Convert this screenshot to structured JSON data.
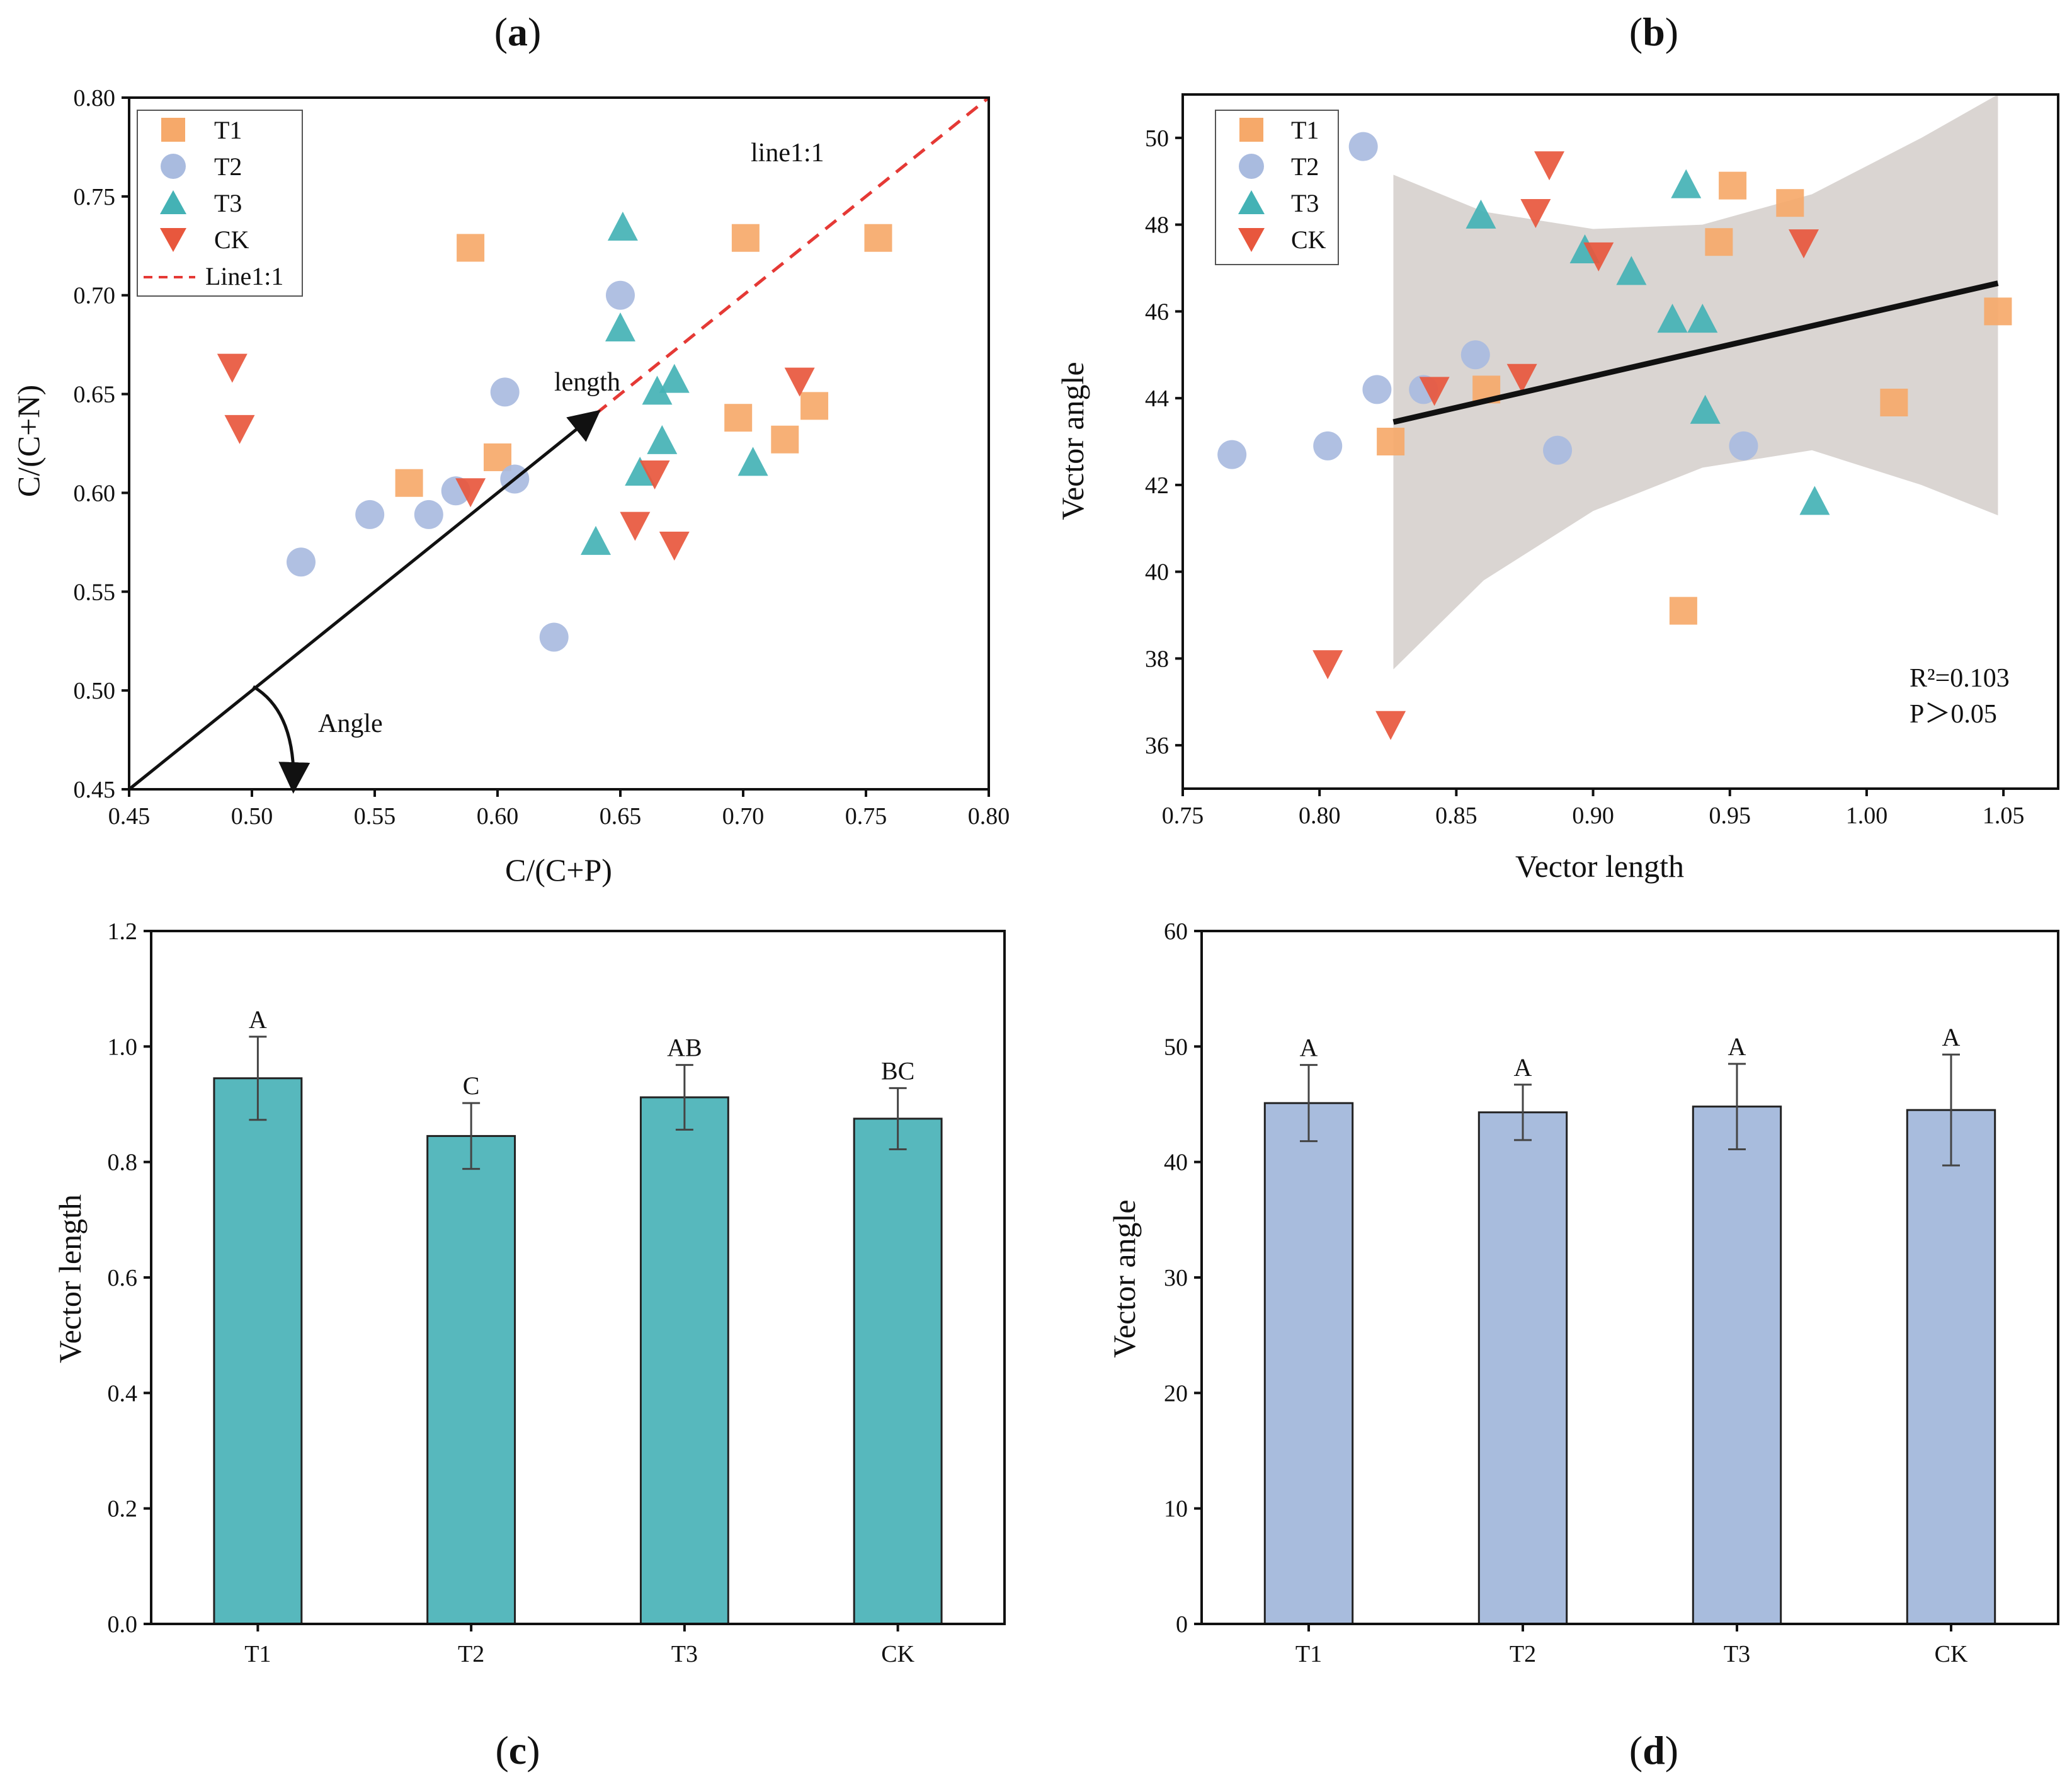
{
  "figure": {
    "panel_labels": {
      "a": [
        "(",
        "a",
        ")"
      ],
      "b": [
        "(",
        "b",
        ")"
      ],
      "c": [
        "(",
        "c",
        ")"
      ],
      "d": [
        "(",
        "d",
        ")"
      ]
    }
  },
  "chart_data": [
    {
      "panel": "a",
      "type": "scatter",
      "xlabel": "C/(C+P)",
      "ylabel": "C/(C+N)",
      "xlim": [
        0.45,
        0.8
      ],
      "ylim": [
        0.45,
        0.8
      ],
      "xticks": [
        "0.45",
        "0.50",
        "0.55",
        "0.60",
        "0.65",
        "0.70",
        "0.75",
        "0.80"
      ],
      "yticks": [
        "0.45",
        "0.50",
        "0.55",
        "0.60",
        "0.65",
        "0.70",
        "0.75",
        "0.80"
      ],
      "reference_line": {
        "name": "Line1:1",
        "label": "line1:1",
        "from": [
          0.45,
          0.45
        ],
        "to": [
          0.8,
          0.8
        ]
      },
      "annotations": {
        "length": "length",
        "angle": "Angle"
      },
      "vector_arrow": {
        "from": [
          0.45,
          0.45
        ],
        "to": [
          0.64,
          0.64
        ]
      },
      "legend": [
        "T1",
        "T2",
        "T3",
        "CK",
        "Line1:1"
      ],
      "series": [
        {
          "name": "T1",
          "marker": "square",
          "color": "#f6a96a",
          "points": [
            [
              0.589,
              0.724
            ],
            [
              0.701,
              0.729
            ],
            [
              0.755,
              0.729
            ],
            [
              0.564,
              0.605
            ],
            [
              0.6,
              0.618
            ],
            [
              0.698,
              0.638
            ],
            [
              0.717,
              0.627
            ],
            [
              0.729,
              0.644
            ]
          ]
        },
        {
          "name": "T2",
          "marker": "circle",
          "color": "#a9bbdf",
          "points": [
            [
              0.65,
              0.7
            ],
            [
              0.603,
              0.651
            ],
            [
              0.52,
              0.565
            ],
            [
              0.548,
              0.589
            ],
            [
              0.572,
              0.589
            ],
            [
              0.583,
              0.601
            ],
            [
              0.607,
              0.607
            ],
            [
              0.623,
              0.527
            ]
          ]
        },
        {
          "name": "T3",
          "marker": "triangle-up",
          "color": "#44b2b5",
          "points": [
            [
              0.651,
              0.734
            ],
            [
              0.65,
              0.683
            ],
            [
              0.672,
              0.657
            ],
            [
              0.665,
              0.651
            ],
            [
              0.667,
              0.626
            ],
            [
              0.658,
              0.61
            ],
            [
              0.704,
              0.615
            ],
            [
              0.64,
              0.575
            ]
          ]
        },
        {
          "name": "CK",
          "marker": "triangle-down",
          "color": "#e8573d",
          "points": [
            [
              0.492,
              0.664
            ],
            [
              0.495,
              0.633
            ],
            [
              0.723,
              0.657
            ],
            [
              0.664,
              0.61
            ],
            [
              0.589,
              0.601
            ],
            [
              0.656,
              0.584
            ],
            [
              0.672,
              0.574
            ]
          ]
        }
      ]
    },
    {
      "panel": "b",
      "type": "scatter",
      "xlabel": "Vector length",
      "ylabel": "Vector angle",
      "xlim": [
        0.75,
        1.07
      ],
      "ylim": [
        35,
        51
      ],
      "xticks": [
        "0.75",
        "0.80",
        "0.85",
        "0.90",
        "0.95",
        "1.00",
        "1.05"
      ],
      "yticks": [
        "36",
        "38",
        "40",
        "42",
        "44",
        "46",
        "48",
        "50"
      ],
      "stats": {
        "r2": "R²=0.103",
        "p": "P＞0.05"
      },
      "fit_line": {
        "from": [
          0.827,
          43.45
        ],
        "to": [
          1.048,
          46.65
        ]
      },
      "confidence_band": {
        "x": [
          0.827,
          0.86,
          0.9,
          0.94,
          0.98,
          1.02,
          1.048
        ],
        "upper": [
          49.15,
          48.3,
          47.9,
          48.0,
          48.7,
          50.0,
          51.0
        ],
        "lower": [
          37.75,
          39.8,
          41.4,
          42.4,
          42.8,
          42.0,
          41.3
        ]
      },
      "legend": [
        "T1",
        "T2",
        "T3",
        "CK"
      ],
      "series": [
        {
          "name": "T1",
          "marker": "square",
          "color": "#f6a96a",
          "points": [
            [
              0.951,
              48.9
            ],
            [
              0.972,
              48.5
            ],
            [
              0.946,
              47.6
            ],
            [
              0.861,
              44.2
            ],
            [
              0.826,
              43.0
            ],
            [
              1.048,
              46.0
            ],
            [
              1.01,
              43.9
            ],
            [
              0.933,
              39.1
            ]
          ]
        },
        {
          "name": "T2",
          "marker": "circle",
          "color": "#a9bbdf",
          "points": [
            [
              0.816,
              49.8
            ],
            [
              0.857,
              45.0
            ],
            [
              0.821,
              44.2
            ],
            [
              0.838,
              44.2
            ],
            [
              0.768,
              42.7
            ],
            [
              0.803,
              42.9
            ],
            [
              0.887,
              42.8
            ],
            [
              0.955,
              42.9
            ]
          ]
        },
        {
          "name": "T3",
          "marker": "triangle-up",
          "color": "#44b2b5",
          "points": [
            [
              0.934,
              48.9
            ],
            [
              0.859,
              48.2
            ],
            [
              0.897,
              47.4
            ],
            [
              0.914,
              46.9
            ],
            [
              0.929,
              45.8
            ],
            [
              0.94,
              45.8
            ],
            [
              0.941,
              43.7
            ],
            [
              0.981,
              41.6
            ]
          ]
        },
        {
          "name": "CK",
          "marker": "triangle-down",
          "color": "#e8573d",
          "points": [
            [
              0.884,
              49.4
            ],
            [
              0.879,
              48.3
            ],
            [
              0.902,
              47.3
            ],
            [
              0.977,
              47.6
            ],
            [
              0.842,
              44.2
            ],
            [
              0.874,
              44.5
            ],
            [
              0.803,
              37.9
            ],
            [
              0.826,
              36.5
            ]
          ]
        }
      ]
    },
    {
      "panel": "c",
      "type": "bar",
      "ylabel": "Vector length",
      "ylim": [
        0,
        1.2
      ],
      "yticks": [
        "0.0",
        "0.2",
        "0.4",
        "0.6",
        "0.8",
        "1.0",
        "1.2"
      ],
      "color": "#57b8bd",
      "categories": [
        "T1",
        "T2",
        "T3",
        "CK"
      ],
      "values": [
        0.945,
        0.845,
        0.912,
        0.875
      ],
      "errors": [
        0.072,
        0.057,
        0.056,
        0.053
      ],
      "letters": [
        "A",
        "C",
        "AB",
        "BC"
      ]
    },
    {
      "panel": "d",
      "type": "bar",
      "ylabel": "Vector angle",
      "ylim": [
        0,
        60
      ],
      "yticks": [
        "0",
        "10",
        "20",
        "30",
        "40",
        "50",
        "60"
      ],
      "color": "#a8bcdd",
      "categories": [
        "T1",
        "T2",
        "T3",
        "CK"
      ],
      "values": [
        45.1,
        44.3,
        44.8,
        44.5
      ],
      "errors": [
        3.3,
        2.4,
        3.7,
        4.8
      ],
      "letters": [
        "A",
        "A",
        "A",
        "A"
      ]
    }
  ]
}
